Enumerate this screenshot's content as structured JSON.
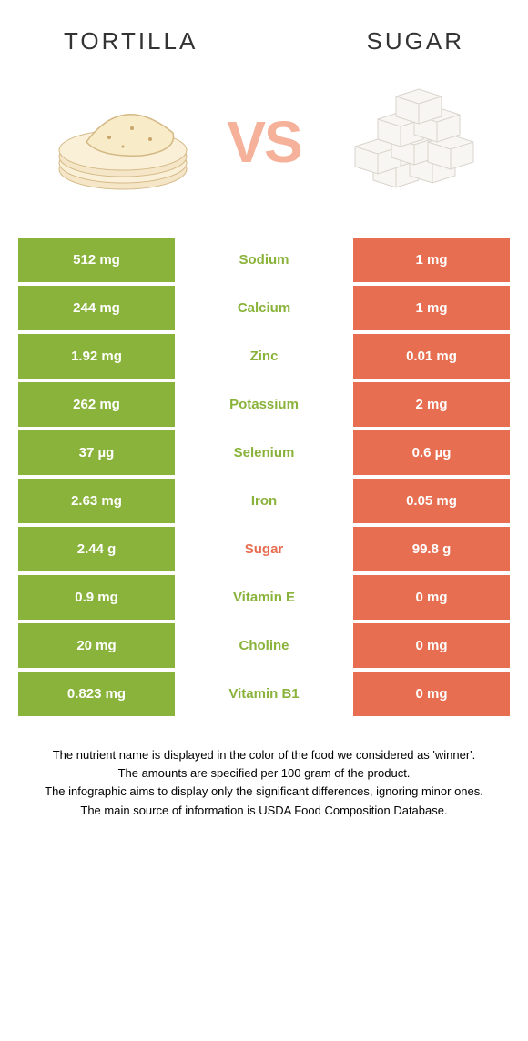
{
  "colors": {
    "green": "#8ab33b",
    "orange": "#e76e50",
    "vs_pink": "#f5b199",
    "text_dark": "#333333"
  },
  "header": {
    "food1": "Tortilla",
    "food2": "Sugar"
  },
  "vs_label": "VS",
  "rows": [
    {
      "left": "512 mg",
      "nutrient": "Sodium",
      "right": "1 mg",
      "winner": "green"
    },
    {
      "left": "244 mg",
      "nutrient": "Calcium",
      "right": "1 mg",
      "winner": "green"
    },
    {
      "left": "1.92 mg",
      "nutrient": "Zinc",
      "right": "0.01 mg",
      "winner": "green"
    },
    {
      "left": "262 mg",
      "nutrient": "Potassium",
      "right": "2 mg",
      "winner": "green"
    },
    {
      "left": "37 µg",
      "nutrient": "Selenium",
      "right": "0.6 µg",
      "winner": "green"
    },
    {
      "left": "2.63 mg",
      "nutrient": "Iron",
      "right": "0.05 mg",
      "winner": "green"
    },
    {
      "left": "2.44 g",
      "nutrient": "Sugar",
      "right": "99.8 g",
      "winner": "orange"
    },
    {
      "left": "0.9 mg",
      "nutrient": "Vitamin E",
      "right": "0 mg",
      "winner": "green"
    },
    {
      "left": "20 mg",
      "nutrient": "Choline",
      "right": "0 mg",
      "winner": "green"
    },
    {
      "left": "0.823 mg",
      "nutrient": "Vitamin B1",
      "right": "0 mg",
      "winner": "green"
    }
  ],
  "footer": {
    "line1": "The nutrient name is displayed in the color of the food we considered as 'winner'.",
    "line2": "The amounts are specified per 100 gram of the product.",
    "line3": "The infographic aims to display only the significant differences, ignoring minor ones.",
    "line4": "The main source of information is USDA Food Composition Database."
  }
}
